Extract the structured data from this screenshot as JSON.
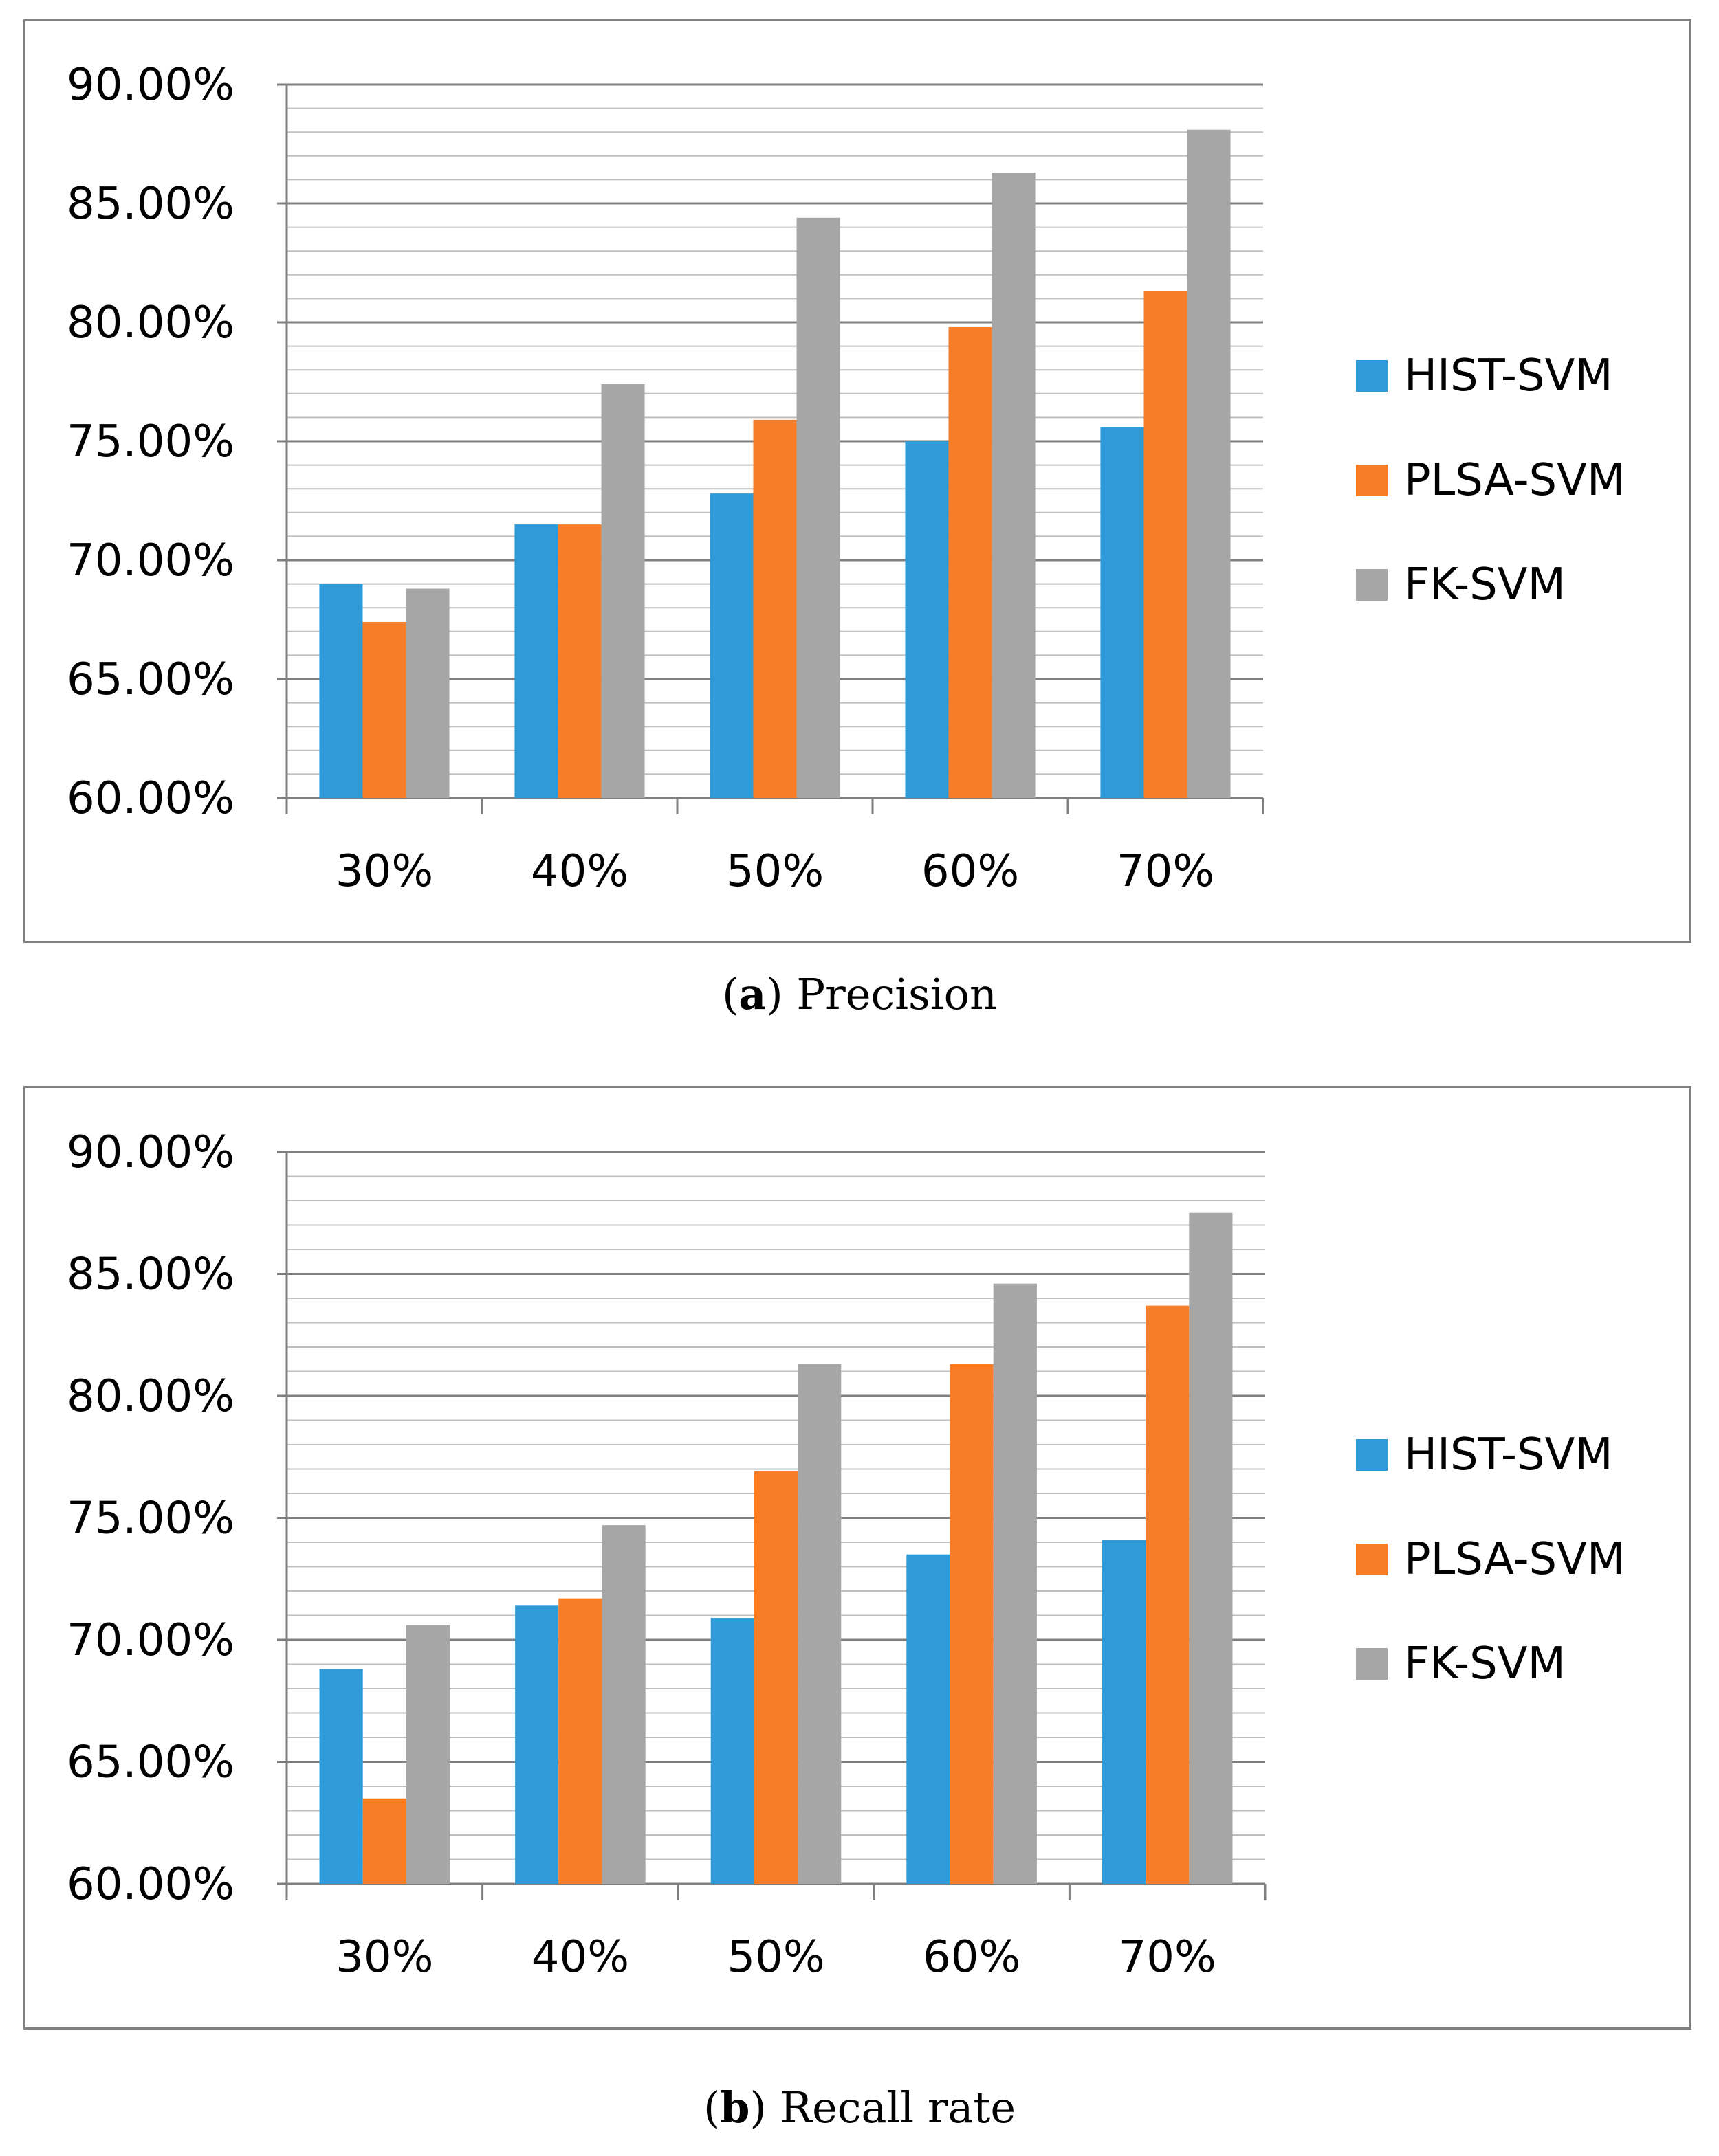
{
  "chart_data": [
    {
      "type": "bar",
      "panel_letter": "a",
      "panel_title": "Precision",
      "categories": [
        "30%",
        "40%",
        "50%",
        "60%",
        "70%"
      ],
      "series": [
        {
          "name": "HIST-SVM",
          "color": "#2e9bd8",
          "values": [
            69.0,
            71.5,
            72.8,
            75.0,
            75.6
          ]
        },
        {
          "name": "PLSA-SVM",
          "color": "#f97d27",
          "values": [
            67.4,
            71.5,
            75.9,
            79.8,
            81.3
          ]
        },
        {
          "name": "FK-SVM",
          "color": "#a6a6a6",
          "values": [
            68.8,
            77.4,
            84.4,
            86.3,
            88.1
          ]
        }
      ],
      "ylim": [
        60,
        90
      ],
      "yticks": [
        "60.00%",
        "65.00%",
        "70.00%",
        "75.00%",
        "80.00%",
        "85.00%",
        "90.00%"
      ],
      "minor_grid_step": 1,
      "legend_position": "right"
    },
    {
      "type": "bar",
      "panel_letter": "b",
      "panel_title": "Recall rate",
      "categories": [
        "30%",
        "40%",
        "50%",
        "60%",
        "70%"
      ],
      "series": [
        {
          "name": "HIST-SVM",
          "color": "#2e9bd8",
          "values": [
            68.8,
            71.4,
            70.9,
            73.5,
            74.1
          ]
        },
        {
          "name": "PLSA-SVM",
          "color": "#f97d27",
          "values": [
            63.5,
            71.7,
            76.9,
            81.3,
            83.7
          ]
        },
        {
          "name": "FK-SVM",
          "color": "#a6a6a6",
          "values": [
            70.6,
            74.7,
            81.3,
            84.6,
            87.5
          ]
        }
      ],
      "ylim": [
        60,
        90
      ],
      "yticks": [
        "60.00%",
        "65.00%",
        "70.00%",
        "75.00%",
        "80.00%",
        "85.00%",
        "90.00%"
      ],
      "minor_grid_step": 1,
      "legend_position": "right"
    }
  ]
}
